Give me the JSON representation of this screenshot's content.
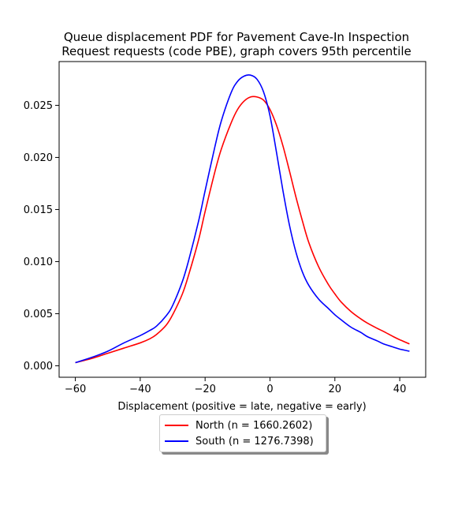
{
  "chart_data": {
    "type": "line",
    "title": "Queue displacement PDF for Pavement Cave-In Inspection Request  requests (code PBE), graph covers 95th percentile",
    "title_lines": [
      "Queue displacement PDF for Pavement Cave-In Inspection",
      "Request  requests (code PBE), graph covers 95th percentile"
    ],
    "xlabel": "Displacement (positive = late, negative = early)",
    "ylabel": "",
    "xlim": [
      -65,
      48
    ],
    "ylim": [
      -0.0011,
      0.0292
    ],
    "xticks": [
      -60,
      -40,
      -20,
      0,
      20,
      40
    ],
    "yticks": [
      0.0,
      0.005,
      0.01,
      0.015,
      0.02,
      0.025
    ],
    "ytick_labels": [
      "0.000",
      "0.005",
      "0.010",
      "0.015",
      "0.020",
      "0.025"
    ],
    "grid": false,
    "legend_position": "below-center",
    "series": [
      {
        "name": "North (n = 1660.2602)",
        "color": "#ff0000",
        "x": [
          -60,
          -55,
          -50,
          -45,
          -40,
          -37,
          -35,
          -32,
          -30,
          -27,
          -25,
          -22,
          -20,
          -17,
          -15,
          -12,
          -10,
          -8,
          -6,
          -4,
          -2,
          0,
          2,
          4,
          6,
          8,
          10,
          12,
          15,
          18,
          20,
          22,
          25,
          28,
          30,
          33,
          35,
          38,
          40,
          43
        ],
        "values": [
          0.0003,
          0.0007,
          0.0012,
          0.0017,
          0.0022,
          0.0026,
          0.003,
          0.0039,
          0.0049,
          0.0069,
          0.0088,
          0.0121,
          0.0148,
          0.0186,
          0.0208,
          0.0233,
          0.0246,
          0.0254,
          0.0258,
          0.0258,
          0.0255,
          0.0246,
          0.0231,
          0.0211,
          0.0187,
          0.0162,
          0.0139,
          0.0118,
          0.0095,
          0.0078,
          0.0069,
          0.0061,
          0.0052,
          0.0045,
          0.0041,
          0.0036,
          0.0033,
          0.0028,
          0.0025,
          0.0021
        ]
      },
      {
        "name": "South (n = 1276.7398)",
        "color": "#0000ff",
        "x": [
          -60,
          -55,
          -50,
          -45,
          -40,
          -37,
          -35,
          -32,
          -30,
          -27,
          -25,
          -22,
          -20,
          -17,
          -15,
          -12,
          -10,
          -8,
          -6,
          -4,
          -2,
          0,
          2,
          4,
          6,
          8,
          10,
          12,
          15,
          18,
          20,
          22,
          25,
          28,
          30,
          33,
          35,
          38,
          40,
          43
        ],
        "values": [
          0.0003,
          0.0008,
          0.0014,
          0.0022,
          0.0029,
          0.0034,
          0.0038,
          0.0048,
          0.0058,
          0.0081,
          0.0102,
          0.0139,
          0.0168,
          0.021,
          0.0235,
          0.0262,
          0.0273,
          0.0278,
          0.0279,
          0.0275,
          0.0263,
          0.024,
          0.0205,
          0.0168,
          0.0135,
          0.0109,
          0.009,
          0.0077,
          0.0064,
          0.0055,
          0.0049,
          0.0044,
          0.0037,
          0.0032,
          0.0028,
          0.0024,
          0.0021,
          0.0018,
          0.0016,
          0.0014
        ]
      }
    ]
  }
}
